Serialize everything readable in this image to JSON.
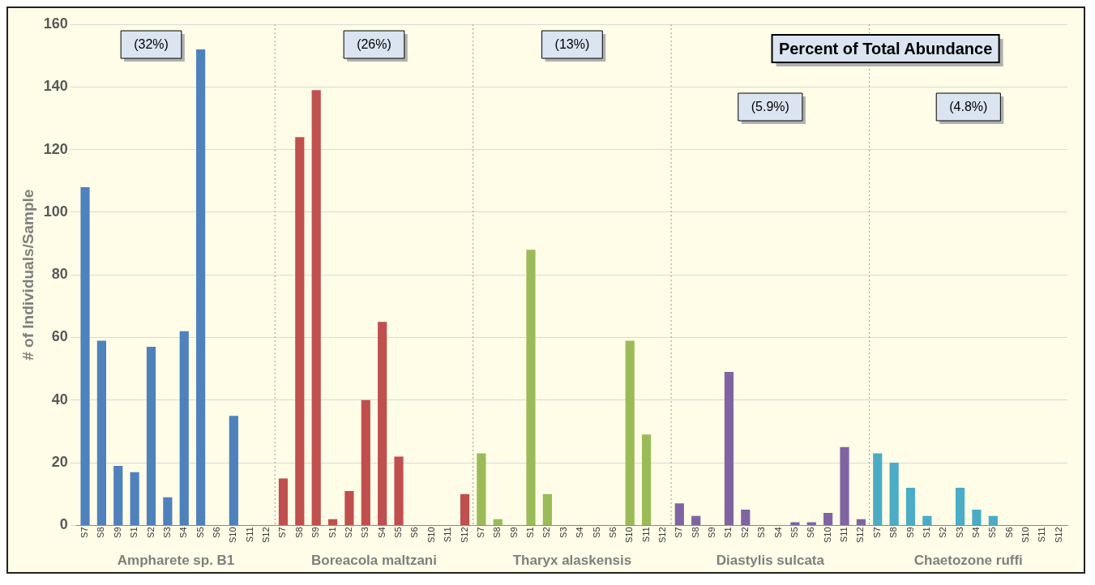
{
  "chart_data": {
    "type": "bar",
    "title": "Percent of Total Abundance",
    "ylabel": "# of Individuals/Sample",
    "categories": [
      "S7",
      "S8",
      "S9",
      "S1",
      "S2",
      "S3",
      "S4",
      "S5",
      "S6",
      "S10",
      "S11",
      "S12",
      "S7",
      "S8",
      "S9",
      "S1",
      "S2",
      "S3",
      "S4",
      "S5",
      "S6",
      "S10",
      "S11",
      "S12",
      "S7",
      "S8",
      "S9",
      "S1",
      "S2",
      "S3",
      "S4",
      "S5",
      "S6",
      "S10",
      "S11",
      "S12",
      "S7",
      "S8",
      "S9",
      "S1",
      "S2",
      "S3",
      "S4",
      "S5",
      "S6",
      "S10",
      "S11",
      "S12",
      "S7",
      "S8",
      "S9",
      "S1",
      "S2",
      "S3",
      "S4",
      "S5",
      "S6",
      "S10",
      "S11",
      "S12"
    ],
    "series": [
      {
        "name": "Ampharete sp. B1",
        "color": "#4f81bd",
        "values": [
          108,
          59,
          19,
          17,
          57,
          9,
          62,
          152,
          0,
          35,
          0,
          0,
          null,
          null,
          null,
          null,
          null,
          null,
          null,
          null,
          null,
          null,
          null,
          null,
          null,
          null,
          null,
          null,
          null,
          null,
          null,
          null,
          null,
          null,
          null,
          null,
          null,
          null,
          null,
          null,
          null,
          null,
          null,
          null,
          null,
          null,
          null,
          null,
          null,
          null,
          null,
          null,
          null,
          null,
          null,
          null,
          null,
          null,
          null,
          null
        ]
      },
      {
        "name": "Boreacola maltzani",
        "color": "#c0504d",
        "values": [
          null,
          null,
          null,
          null,
          null,
          null,
          null,
          null,
          null,
          null,
          null,
          null,
          15,
          124,
          139,
          2,
          11,
          40,
          65,
          22,
          0,
          0,
          0,
          10,
          null,
          null,
          null,
          null,
          null,
          null,
          null,
          null,
          null,
          null,
          null,
          null,
          null,
          null,
          null,
          null,
          null,
          null,
          null,
          null,
          null,
          null,
          null,
          null,
          null,
          null,
          null,
          null,
          null,
          null,
          null,
          null,
          null,
          null,
          null,
          null
        ]
      },
      {
        "name": "Tharyx alaskensis",
        "color": "#9bbb59",
        "values": [
          null,
          null,
          null,
          null,
          null,
          null,
          null,
          null,
          null,
          null,
          null,
          null,
          null,
          null,
          null,
          null,
          null,
          null,
          null,
          null,
          null,
          null,
          null,
          null,
          23,
          2,
          0,
          88,
          10,
          0,
          0,
          0,
          0,
          59,
          29,
          0,
          null,
          null,
          null,
          null,
          null,
          null,
          null,
          null,
          null,
          null,
          null,
          null,
          null,
          null,
          null,
          null,
          null,
          null,
          null,
          null,
          null,
          null,
          null,
          null
        ]
      },
      {
        "name": "Diastylis sulcata",
        "color": "#8064a2",
        "values": [
          null,
          null,
          null,
          null,
          null,
          null,
          null,
          null,
          null,
          null,
          null,
          null,
          null,
          null,
          null,
          null,
          null,
          null,
          null,
          null,
          null,
          null,
          null,
          null,
          null,
          null,
          null,
          null,
          null,
          null,
          null,
          null,
          null,
          null,
          null,
          null,
          7,
          3,
          0,
          49,
          5,
          0,
          0,
          1,
          1,
          4,
          25,
          2,
          null,
          null,
          null,
          null,
          null,
          null,
          null,
          null,
          null,
          null,
          null,
          null
        ]
      },
      {
        "name": "Chaetozone ruffi",
        "color": "#4bacc6",
        "values": [
          null,
          null,
          null,
          null,
          null,
          null,
          null,
          null,
          null,
          null,
          null,
          null,
          null,
          null,
          null,
          null,
          null,
          null,
          null,
          null,
          null,
          null,
          null,
          null,
          null,
          null,
          null,
          null,
          null,
          null,
          null,
          null,
          null,
          null,
          null,
          null,
          null,
          null,
          null,
          null,
          null,
          null,
          null,
          null,
          null,
          null,
          null,
          null,
          23,
          20,
          12,
          3,
          0,
          12,
          5,
          3,
          0,
          0,
          0,
          0
        ]
      }
    ],
    "annotations": [
      "(32%)",
      "(26%)",
      "(13%)",
      "(5.9%)",
      "(4.8%)"
    ],
    "ylim": [
      0,
      160
    ],
    "yticks": [
      0,
      20,
      40,
      60,
      80,
      100,
      120,
      140,
      160
    ],
    "grid": "y",
    "legend": false
  }
}
